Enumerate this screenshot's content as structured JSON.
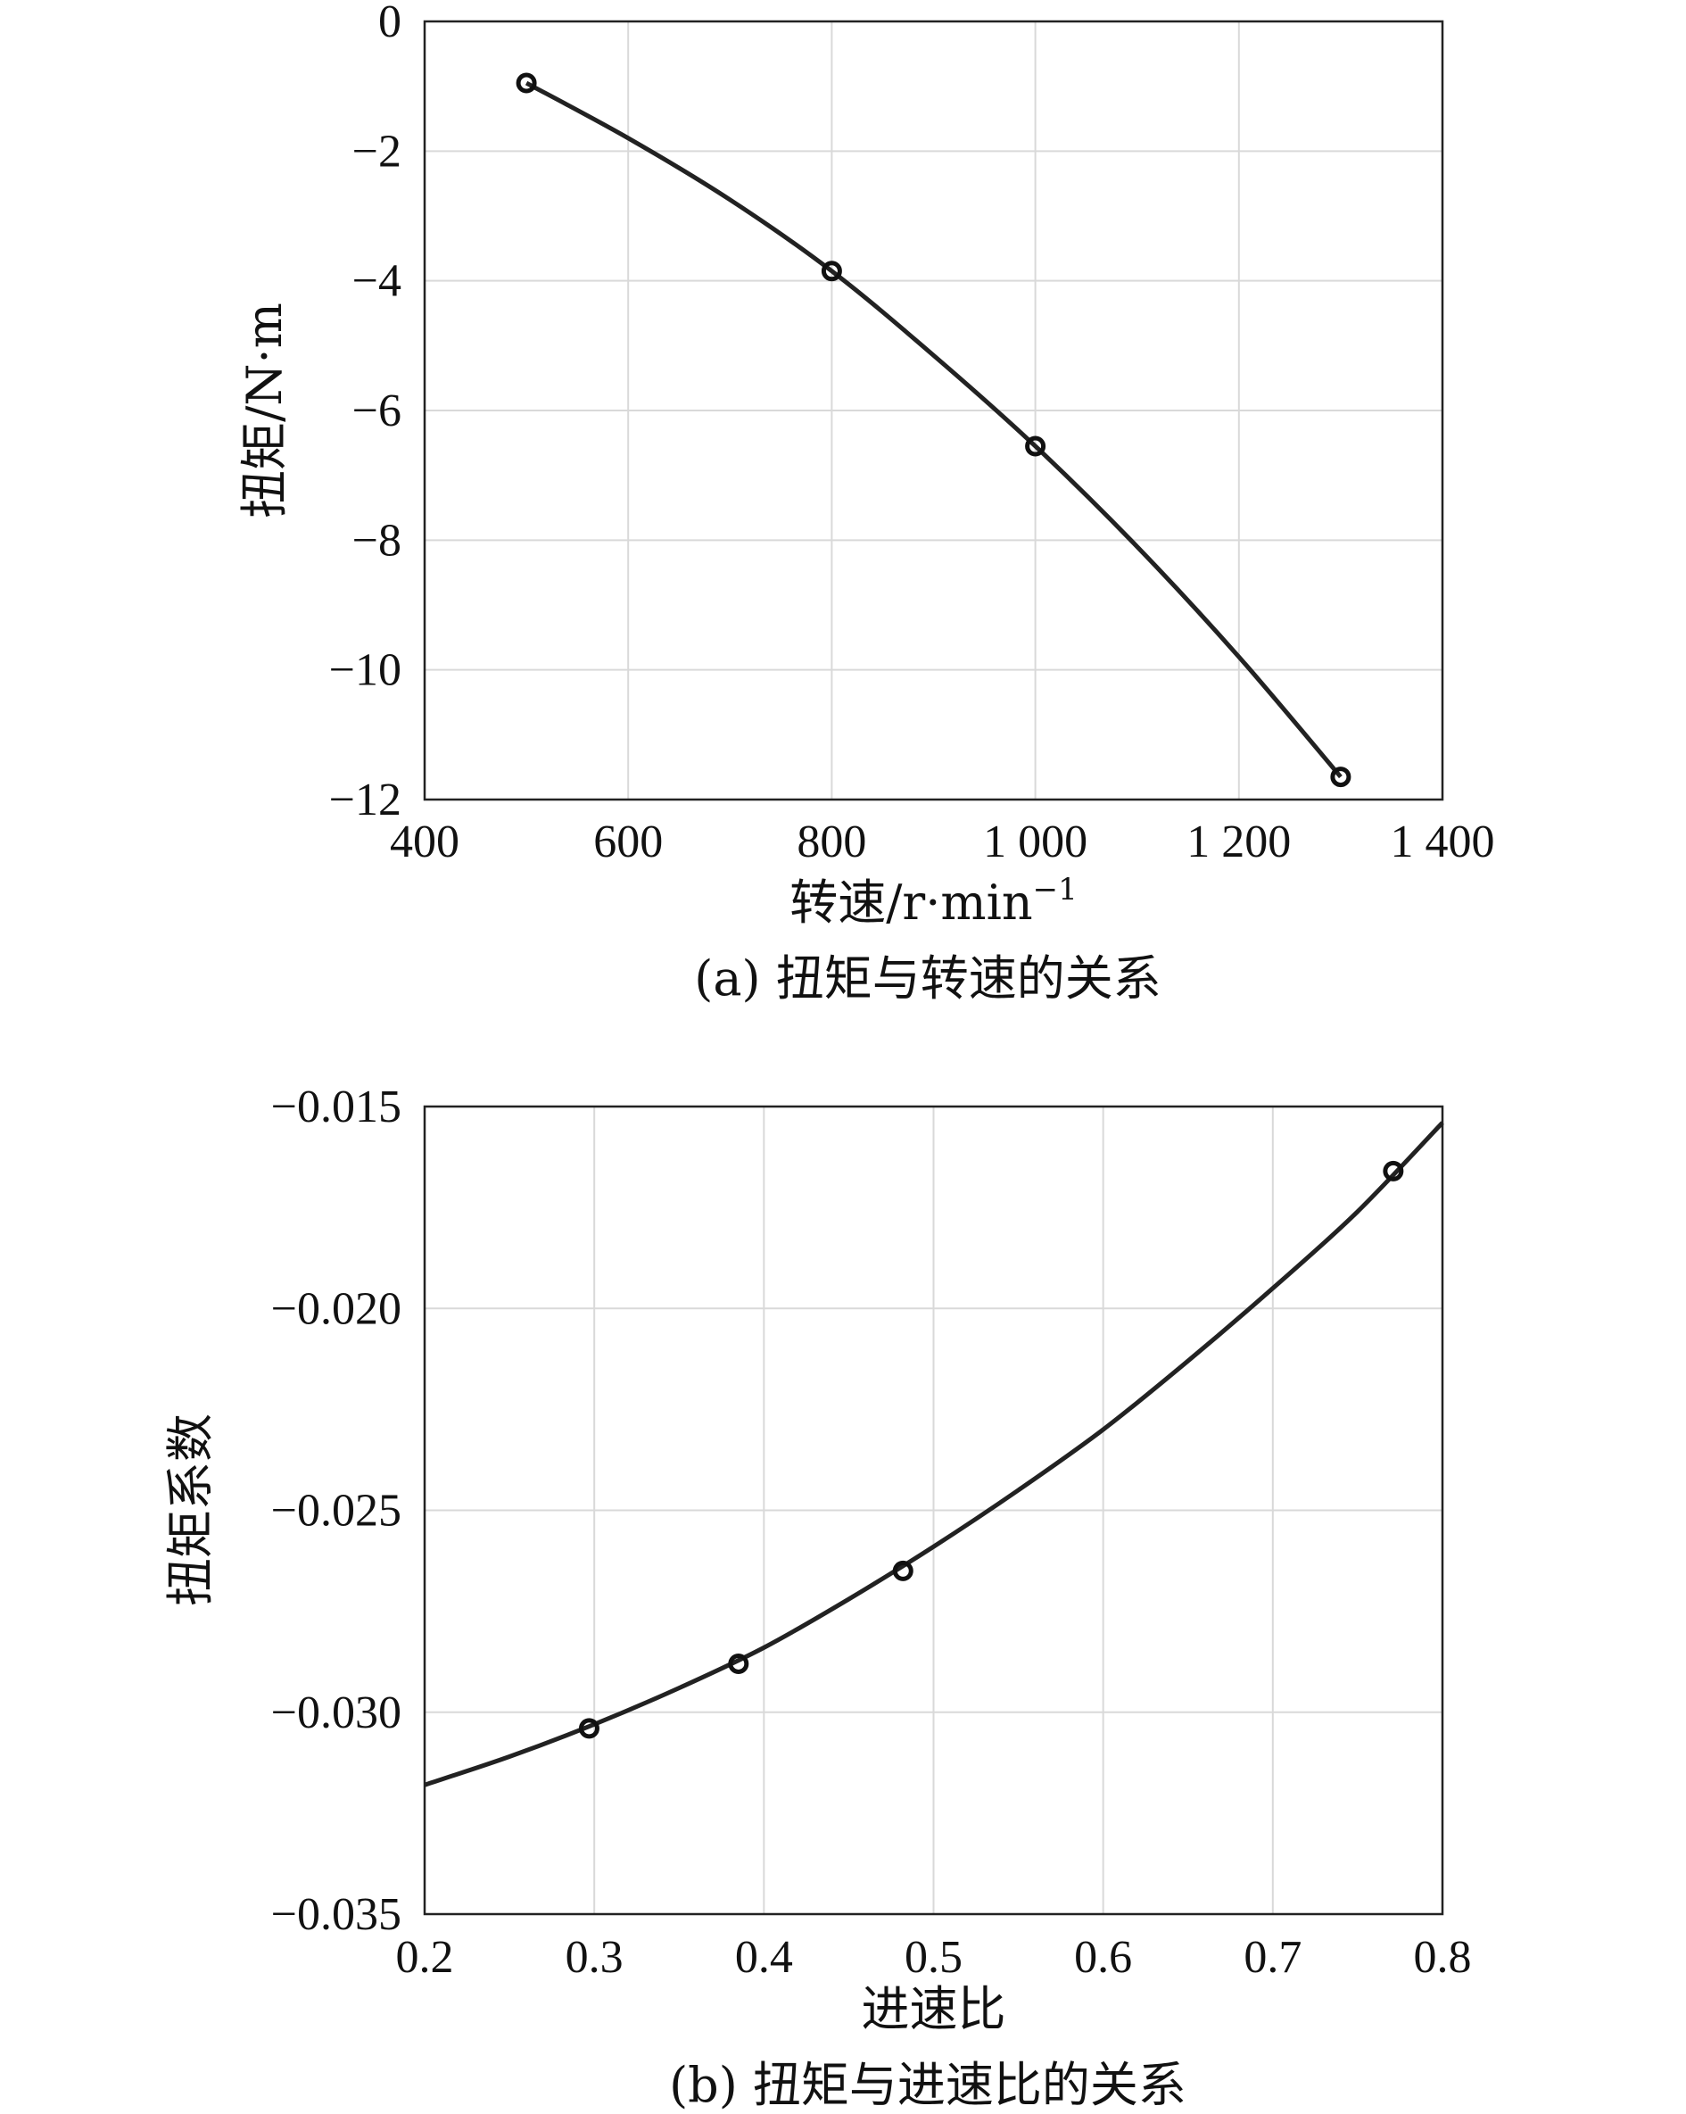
{
  "chart_data": [
    {
      "type": "line",
      "caption": "(a) 扭矩与转速的关系",
      "xlabel": "转速/r·min",
      "xlabel_sup": "−1",
      "ylabel": "扭矩/N·m",
      "xlim": [
        400,
        1400
      ],
      "ylim": [
        -12,
        0
      ],
      "xticks": [
        400,
        600,
        800,
        1000,
        1200,
        1400
      ],
      "xtick_labels": [
        "400",
        "600",
        "800",
        "1 000",
        "1 200",
        "1 400"
      ],
      "yticks": [
        0,
        -2,
        -4,
        -6,
        -8,
        -10,
        -12
      ],
      "ytick_labels": [
        "0",
        "−2",
        "−4",
        "−6",
        "−8",
        "−10",
        "−12"
      ],
      "grid": true,
      "series": [
        {
          "markers": {
            "x": [
              500,
              800,
              1000,
              1300
            ],
            "y": [
              -0.95,
              -3.85,
              -6.55,
              -11.65
            ]
          },
          "curve": {
            "x": [
              500,
              600,
              700,
              800,
              900,
              1000,
              1100,
              1200,
              1300
            ],
            "y": [
              -0.95,
              -1.8,
              -2.75,
              -3.85,
              -5.15,
              -6.55,
              -8.1,
              -9.8,
              -11.65
            ]
          }
        }
      ]
    },
    {
      "type": "line",
      "caption": "(b) 扭矩与进速比的关系",
      "xlabel": "进速比",
      "ylabel": "扭矩系数",
      "xlim": [
        0.2,
        0.8
      ],
      "ylim": [
        -0.035,
        -0.015
      ],
      "xticks": [
        0.2,
        0.3,
        0.4,
        0.5,
        0.6,
        0.7,
        0.8
      ],
      "xtick_labels": [
        "0.2",
        "0.3",
        "0.4",
        "0.5",
        "0.6",
        "0.7",
        "0.8"
      ],
      "yticks": [
        -0.015,
        -0.02,
        -0.025,
        -0.03,
        -0.035
      ],
      "ytick_labels": [
        "−0.015",
        "−0.020",
        "−0.025",
        "−0.030",
        "−0.035"
      ],
      "grid": true,
      "series": [
        {
          "markers": {
            "x": [
              0.297,
              0.385,
              0.482,
              0.771
            ],
            "y": [
              -0.0304,
              -0.0288,
              -0.0265,
              -0.0166
            ]
          },
          "curve": {
            "x": [
              0.2,
              0.25,
              0.3,
              0.35,
              0.4,
              0.45,
              0.5,
              0.55,
              0.6,
              0.65,
              0.7,
              0.75,
              0.8
            ],
            "y": [
              -0.0318,
              -0.0311,
              -0.0303,
              -0.0294,
              -0.0284,
              -0.0272,
              -0.0259,
              -0.0245,
              -0.023,
              -0.0213,
              -0.0195,
              -0.0176,
              -0.0154
            ]
          }
        }
      ]
    }
  ]
}
